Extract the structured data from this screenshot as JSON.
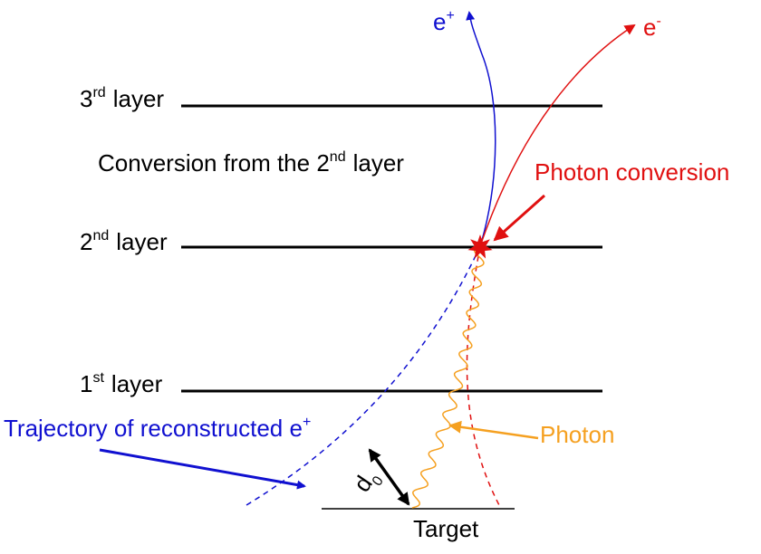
{
  "layers": {
    "third": {
      "num": "3",
      "sup": "rd",
      "word": "layer"
    },
    "second": {
      "num": "2",
      "sup": "nd",
      "word": "layer"
    },
    "first": {
      "num": "1",
      "sup": "st",
      "word": "layer"
    }
  },
  "conversion_note": {
    "prefix": "Conversion from the 2",
    "sup": "nd",
    "suffix": "layer"
  },
  "photon_conversion_label": "Photon conversion",
  "positron": {
    "base": "e",
    "sup": "+"
  },
  "electron": {
    "base": "e",
    "sup": "-"
  },
  "photon_label": "Photon",
  "trajectory_label": {
    "text": "Trajectory of reconstructed e",
    "sup": "+"
  },
  "d0_label": {
    "base": "d",
    "sub": "0"
  },
  "target_label": "Target",
  "colors": {
    "positron": "#1010d0",
    "electron": "#e01010",
    "photon": "#f5a020",
    "layer": "#000000",
    "conversion_star": "#e01010"
  }
}
